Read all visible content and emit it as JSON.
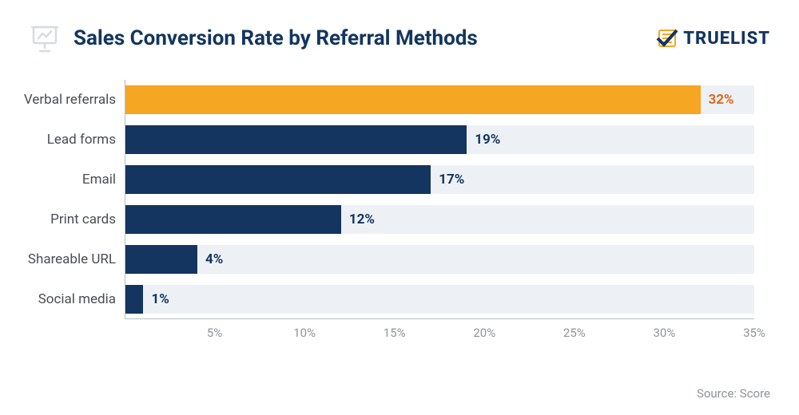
{
  "title": "Sales Conversion Rate by Referral Methods",
  "title_color": "#13355f",
  "title_fontsize": 26,
  "icon_color": "#d7dce4",
  "logo": {
    "text": "TRUELIST",
    "text_color": "#13355f",
    "accent_color": "#f5a623"
  },
  "chart": {
    "type": "horizontal-bar",
    "xmax": 35,
    "x_ticks": [
      5,
      10,
      15,
      20,
      25,
      30,
      35
    ],
    "x_tick_labels": [
      "5%",
      "10%",
      "15%",
      "20%",
      "25%",
      "30%",
      "35%"
    ],
    "axis_color": "#b9bcc1",
    "tick_label_color": "#8f939b",
    "label_color": "#4a4d55",
    "label_fontsize": 17,
    "value_fontsize": 17,
    "track_color": "#edf1f5",
    "bar_colors": {
      "highlight": "#f5a623",
      "default": "#13355f"
    },
    "value_colors": {
      "highlight": "#e06a1a",
      "default": "#13355f"
    },
    "bars": [
      {
        "label": "Verbal referrals",
        "value": 32,
        "display": "32%",
        "highlight": true
      },
      {
        "label": "Lead forms",
        "value": 19,
        "display": "19%",
        "highlight": false
      },
      {
        "label": "Email",
        "value": 17,
        "display": "17%",
        "highlight": false
      },
      {
        "label": "Print cards",
        "value": 12,
        "display": "12%",
        "highlight": false
      },
      {
        "label": "Shareable URL",
        "value": 4,
        "display": "4%",
        "highlight": false
      },
      {
        "label": "Social media",
        "value": 1,
        "display": "1%",
        "highlight": false
      }
    ]
  },
  "source": {
    "text": "Source: Score",
    "color": "#8f939b"
  }
}
